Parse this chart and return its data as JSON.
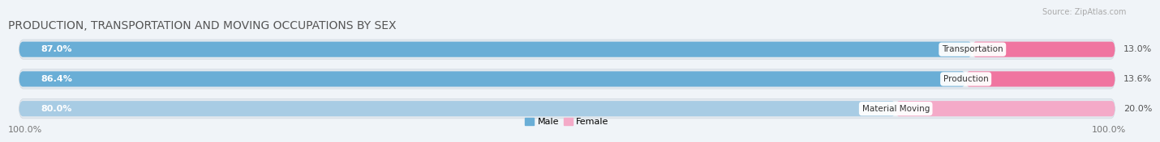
{
  "title": "PRODUCTION, TRANSPORTATION AND MOVING OCCUPATIONS BY SEX",
  "source": "Source: ZipAtlas.com",
  "categories": [
    "Transportation",
    "Production",
    "Material Moving"
  ],
  "male_pct": [
    87.0,
    86.4,
    80.0
  ],
  "female_pct": [
    13.0,
    13.6,
    20.0
  ],
  "male_color_top": "#6aaed6",
  "male_color_bottom": "#a8cce4",
  "female_color_top": "#f075a0",
  "female_color_bottom": "#f4aac8",
  "male_label": "Male",
  "female_label": "Female",
  "bg_strip_color": "#e8edf2",
  "title_fontsize": 10,
  "label_fontsize": 8,
  "tick_fontsize": 8,
  "pct_left_color": "white",
  "pct_right_color": "#555555"
}
